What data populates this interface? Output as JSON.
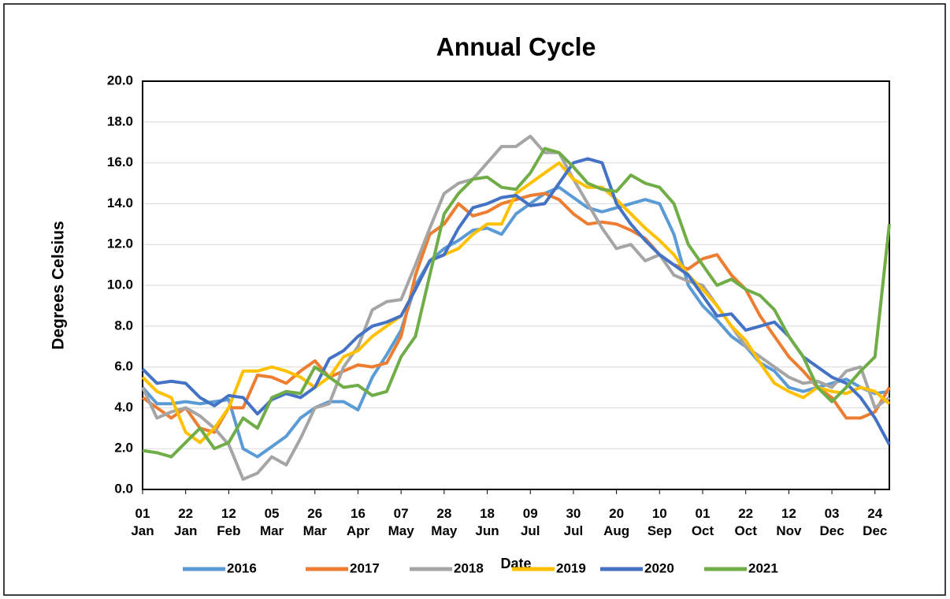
{
  "chart_data": {
    "type": "line",
    "title": "Annual Cycle",
    "x_label": "Date",
    "y_label": "Degrees Celsius",
    "x": [
      1,
      8,
      15,
      22,
      29,
      36,
      43,
      50,
      57,
      64,
      71,
      78,
      85,
      92,
      99,
      106,
      113,
      120,
      127,
      134,
      141,
      148,
      155,
      162,
      169,
      176,
      183,
      190,
      197,
      204,
      211,
      218,
      225,
      232,
      239,
      246,
      253,
      260,
      267,
      274,
      281,
      288,
      295,
      302,
      309,
      316,
      323,
      330,
      337,
      344,
      351,
      358,
      365
    ],
    "xlim": [
      1,
      365
    ],
    "xticks": [
      {
        "value": 1,
        "label": "01 Jan"
      },
      {
        "value": 22,
        "label": "22 Jan"
      },
      {
        "value": 43,
        "label": "12 Feb"
      },
      {
        "value": 64,
        "label": "05 Mar"
      },
      {
        "value": 85,
        "label": "26 Mar"
      },
      {
        "value": 106,
        "label": "16 Apr"
      },
      {
        "value": 127,
        "label": "07 May"
      },
      {
        "value": 148,
        "label": "28 May"
      },
      {
        "value": 169,
        "label": "18 Jun"
      },
      {
        "value": 190,
        "label": "09 Jul"
      },
      {
        "value": 211,
        "label": "30 Jul"
      },
      {
        "value": 232,
        "label": "20 Aug"
      },
      {
        "value": 253,
        "label": "10 Sep"
      },
      {
        "value": 274,
        "label": "01 Oct"
      },
      {
        "value": 295,
        "label": "22 Oct"
      },
      {
        "value": 316,
        "label": "12 Nov"
      },
      {
        "value": 337,
        "label": "03 Dec"
      },
      {
        "value": 358,
        "label": "24 Dec"
      }
    ],
    "ylim": [
      0,
      20
    ],
    "yticks": [
      {
        "value": 0,
        "label": "0.0"
      },
      {
        "value": 2,
        "label": "2.0"
      },
      {
        "value": 4,
        "label": "4.0"
      },
      {
        "value": 6,
        "label": "6.0"
      },
      {
        "value": 8,
        "label": "8.0"
      },
      {
        "value": 10,
        "label": "10.0"
      },
      {
        "value": 12,
        "label": "12.0"
      },
      {
        "value": 14,
        "label": "14.0"
      },
      {
        "value": 16,
        "label": "16.0"
      },
      {
        "value": 18,
        "label": "18.0"
      },
      {
        "value": 20,
        "label": "20.0"
      }
    ],
    "grid": true,
    "legend": "bottom",
    "series": [
      {
        "name": "2016",
        "color": "#5b9bd5",
        "values": [
          5.0,
          4.2,
          4.2,
          4.3,
          4.2,
          4.3,
          4.4,
          2.0,
          1.6,
          2.1,
          2.6,
          3.5,
          4.0,
          4.3,
          4.3,
          3.9,
          5.5,
          6.6,
          7.8,
          10.0,
          11.2,
          11.8,
          12.2,
          12.7,
          12.8,
          12.5,
          13.5,
          14.0,
          14.5,
          14.8,
          14.3,
          13.8,
          13.6,
          13.8,
          14.0,
          14.2,
          14.0,
          12.5,
          10.0,
          9.0,
          8.3,
          7.5,
          7.0,
          6.2,
          5.8,
          5.0,
          4.8,
          5.0,
          5.2,
          5.4,
          5.0,
          4.7,
          4.8
        ]
      },
      {
        "name": "2017",
        "color": "#ed7d31",
        "values": [
          4.5,
          4.0,
          3.5,
          4.0,
          3.0,
          2.8,
          4.0,
          4.0,
          5.6,
          5.5,
          5.2,
          5.8,
          6.3,
          5.5,
          5.8,
          6.1,
          6.0,
          6.2,
          7.5,
          10.5,
          12.5,
          13.0,
          14.0,
          13.4,
          13.6,
          14.0,
          14.2,
          14.4,
          14.5,
          14.2,
          13.5,
          13.0,
          13.1,
          13.0,
          12.7,
          12.3,
          11.5,
          11.0,
          10.8,
          11.3,
          11.5,
          10.5,
          9.8,
          8.5,
          7.5,
          6.5,
          5.8,
          5.0,
          4.5,
          3.5,
          3.5,
          3.8,
          5.0
        ]
      },
      {
        "name": "2018",
        "color": "#a5a5a5",
        "values": [
          5.0,
          3.5,
          3.8,
          4.0,
          3.6,
          3.0,
          2.2,
          0.5,
          0.8,
          1.6,
          1.2,
          2.5,
          4.0,
          4.2,
          6.0,
          7.0,
          8.8,
          9.2,
          9.3,
          11.0,
          12.8,
          14.5,
          15.0,
          15.2,
          16.0,
          16.8,
          16.8,
          17.3,
          16.5,
          16.5,
          15.2,
          14.0,
          12.8,
          11.8,
          12.0,
          11.2,
          11.5,
          10.5,
          10.2,
          10.0,
          9.0,
          8.0,
          7.0,
          6.5,
          6.0,
          5.5,
          5.2,
          5.3,
          5.0,
          5.8,
          6.0,
          4.0,
          4.5
        ]
      },
      {
        "name": "2019",
        "color": "#ffc000",
        "values": [
          5.5,
          4.8,
          4.5,
          2.8,
          2.3,
          3.0,
          4.0,
          5.8,
          5.8,
          6.0,
          5.8,
          5.5,
          5.0,
          5.5,
          6.5,
          6.8,
          7.5,
          8.0,
          8.5,
          9.8,
          11.2,
          11.5,
          11.8,
          12.5,
          13.0,
          13.0,
          14.5,
          15.0,
          15.5,
          16.0,
          15.2,
          14.8,
          14.8,
          14.2,
          13.5,
          12.8,
          12.2,
          11.5,
          10.5,
          9.8,
          9.0,
          8.0,
          7.3,
          6.2,
          5.2,
          4.8,
          4.5,
          5.0,
          4.8,
          4.7,
          5.0,
          4.8,
          4.2
        ]
      },
      {
        "name": "2020",
        "color": "#4472c4",
        "values": [
          5.9,
          5.2,
          5.3,
          5.2,
          4.5,
          4.1,
          4.6,
          4.5,
          3.7,
          4.4,
          4.7,
          4.5,
          5.0,
          6.4,
          6.8,
          7.5,
          8.0,
          8.2,
          8.5,
          9.8,
          11.2,
          11.5,
          12.8,
          13.8,
          14.0,
          14.3,
          14.4,
          13.9,
          14.0,
          15.0,
          16.0,
          16.2,
          16.0,
          14.0,
          13.0,
          12.2,
          11.5,
          11.0,
          10.5,
          9.5,
          8.5,
          8.6,
          7.8,
          8.0,
          8.2,
          7.5,
          6.5,
          6.0,
          5.5,
          5.2,
          4.5,
          3.5,
          2.2
        ]
      },
      {
        "name": "2021",
        "color": "#70ad47",
        "values": [
          1.9,
          1.8,
          1.6,
          2.3,
          3.0,
          2.0,
          2.3,
          3.5,
          3.0,
          4.5,
          4.8,
          4.7,
          6.0,
          5.5,
          5.0,
          5.1,
          4.6,
          4.8,
          6.5,
          7.5,
          10.5,
          13.5,
          14.5,
          15.2,
          15.3,
          14.8,
          14.7,
          15.5,
          16.7,
          16.5,
          15.8,
          15.0,
          14.7,
          14.6,
          15.4,
          15.0,
          14.8,
          14.0,
          12.0,
          11.0,
          10.0,
          10.3,
          9.8,
          9.5,
          8.8,
          7.5,
          6.5,
          5.0,
          4.3,
          5.0,
          5.8,
          6.5,
          13.0
        ]
      }
    ]
  }
}
